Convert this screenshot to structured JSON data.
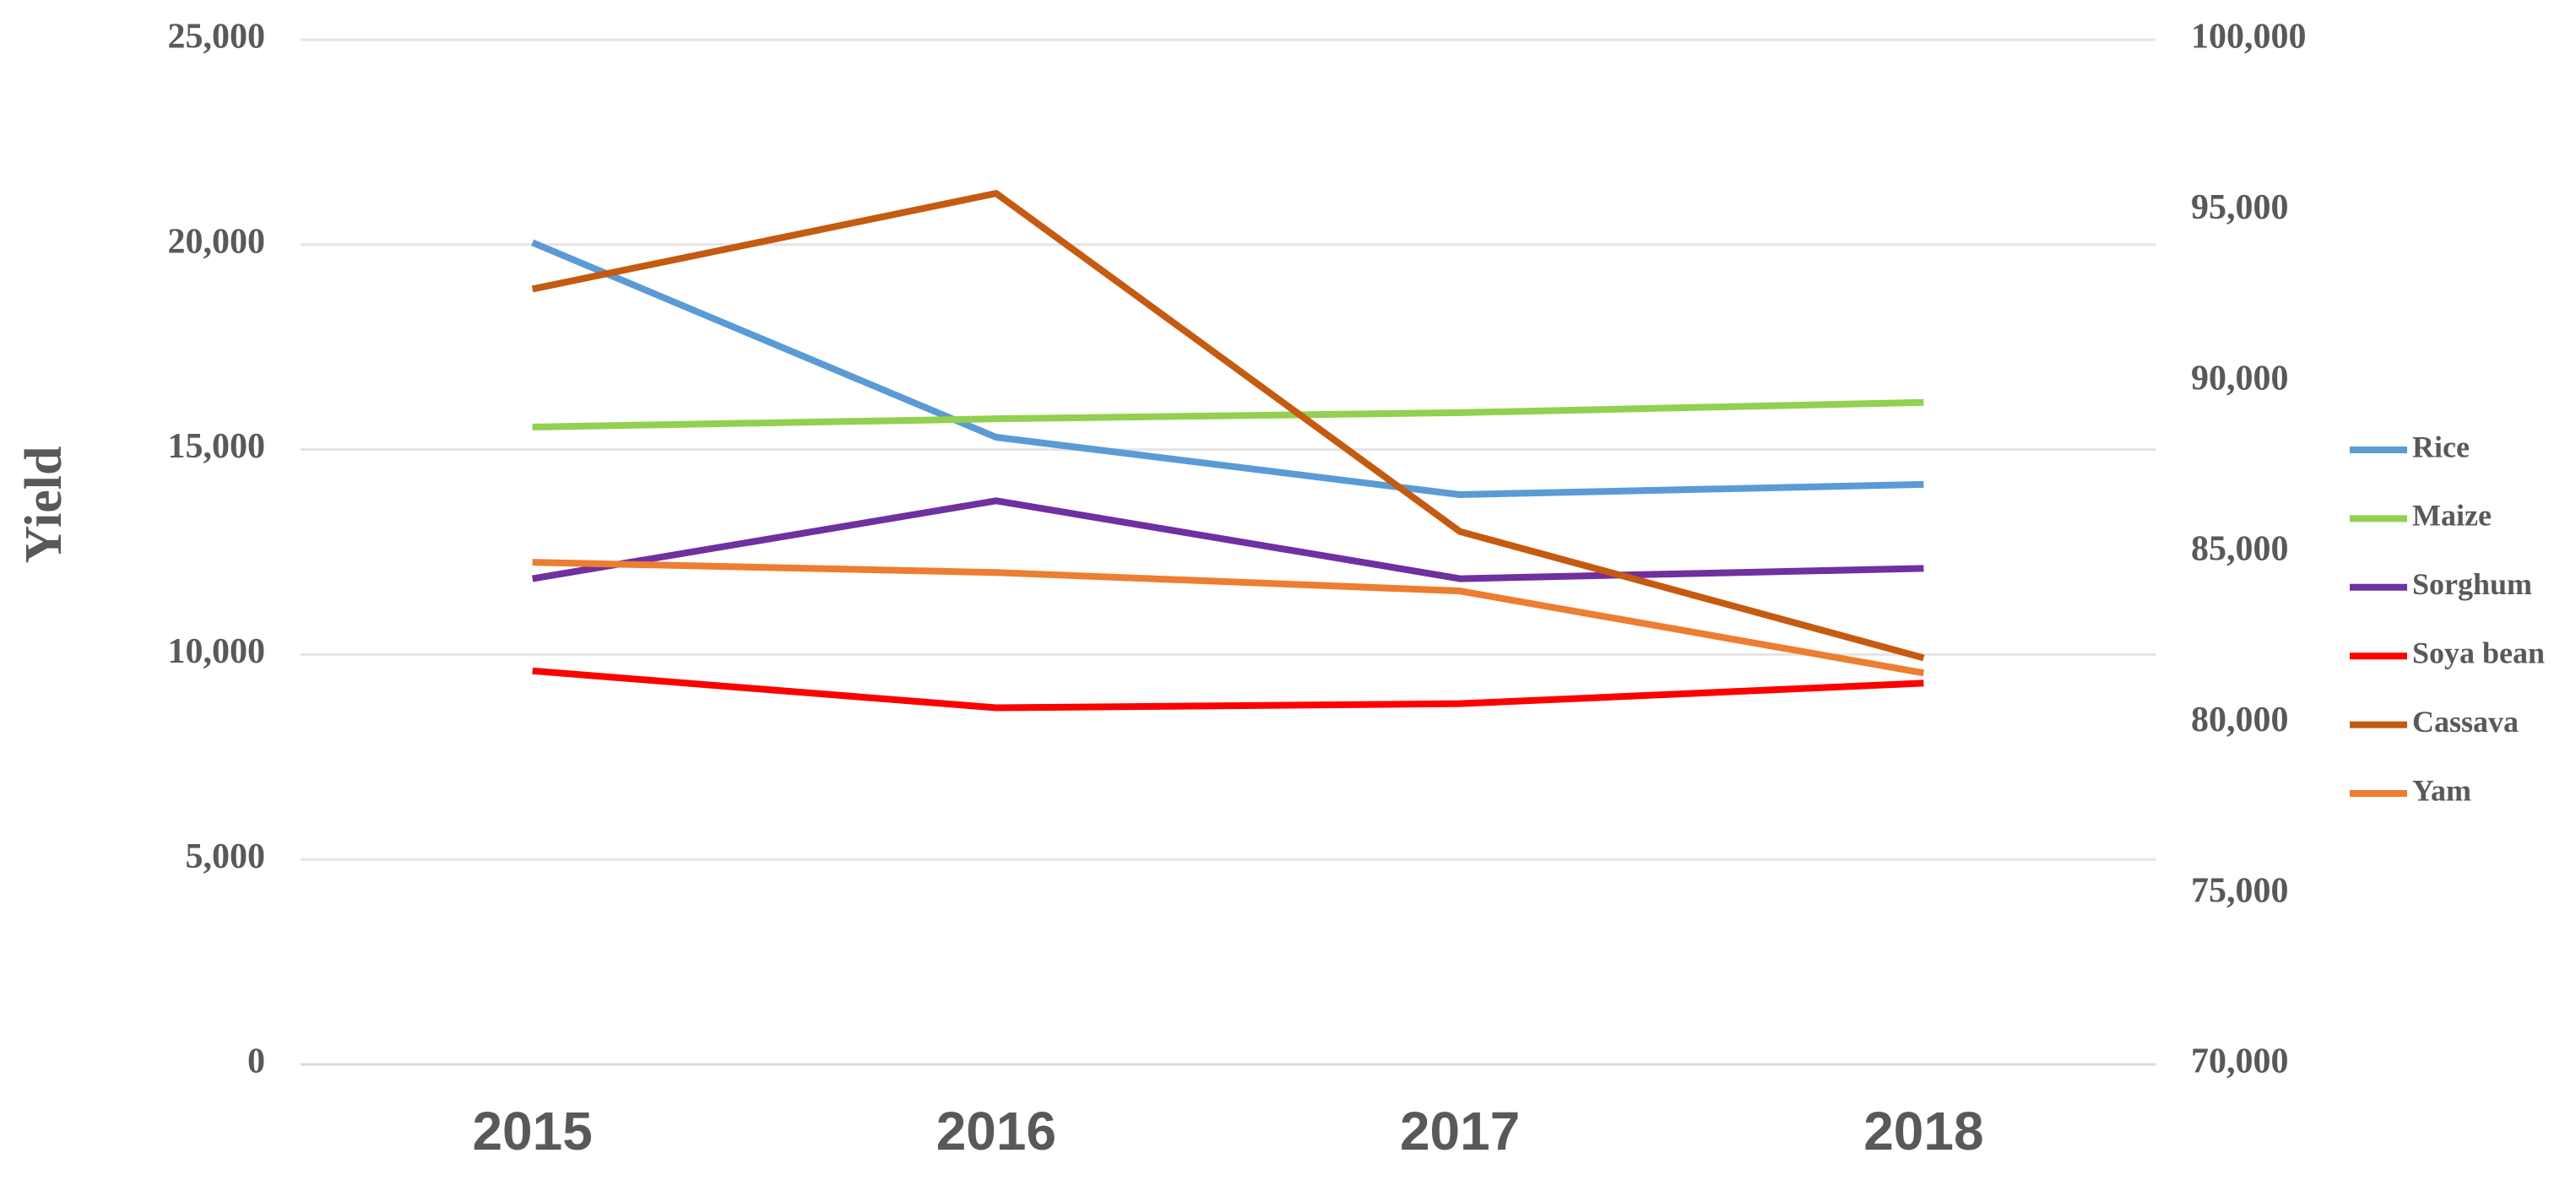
{
  "chart_data": {
    "type": "line",
    "y_label": "Yield",
    "categories": [
      "2015",
      "2016",
      "2017",
      "2018"
    ],
    "series": [
      {
        "name": "Rice",
        "color": "#5b9bd5",
        "values": [
          20050,
          15300,
          13900,
          14150
        ]
      },
      {
        "name": "Maize",
        "color": "#92d050",
        "values": [
          15550,
          15750,
          15900,
          16150
        ]
      },
      {
        "name": "Sorghum",
        "color": "#7030a0",
        "values": [
          11850,
          13750,
          11850,
          12100
        ]
      },
      {
        "name": "Soya bean",
        "color": "#ff0000",
        "values": [
          9600,
          8700,
          8800,
          9300
        ]
      },
      {
        "name": "Cassava",
        "color": "#c55a11",
        "values": [
          92700,
          95500,
          85600,
          81900
        ],
        "axis": "y2"
      },
      {
        "name": "Yam",
        "color": "#ed7d31",
        "values": [
          12250,
          12000,
          11550,
          9550
        ]
      }
    ],
    "ylim": [
      0,
      25000
    ],
    "yticks": [
      0,
      {
        "value": 5000,
        "label": "5,000"
      },
      {
        "value": 10000,
        "label": "10,000"
      },
      {
        "value": 15000,
        "label": "15,000"
      },
      {
        "value": 20000,
        "label": "20,000"
      },
      {
        "value": 25000,
        "label": "25,000"
      }
    ],
    "y2lim": [
      70000,
      100000
    ],
    "y2ticks": [
      {
        "value": 70000,
        "label": "70,000"
      },
      {
        "value": 75000,
        "label": "75,000"
      },
      {
        "value": 80000,
        "label": "80,000"
      },
      {
        "value": 85000,
        "label": "85,000"
      },
      {
        "value": 90000,
        "label": "90,000"
      },
      {
        "value": 95000,
        "label": "95,000"
      },
      {
        "value": 100000,
        "label": "100,000"
      }
    ],
    "grid": true,
    "legend": "right"
  }
}
